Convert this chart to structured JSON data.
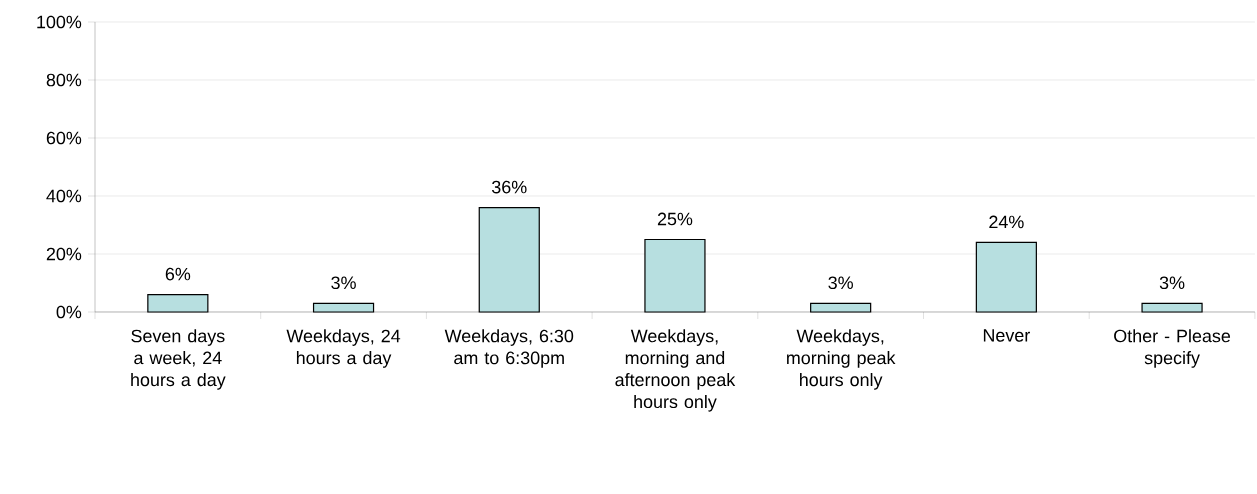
{
  "chart_data": {
    "type": "bar",
    "categories": [
      "Seven days a week, 24 hours a day",
      "Weekdays, 24 hours a day",
      "Weekdays, 6:30 am to 6:30pm",
      "Weekdays, morning and afternoon peak hours only",
      "Weekdays, morning peak hours only",
      "Never",
      "Other - Please specify"
    ],
    "values": [
      6,
      3,
      36,
      25,
      3,
      24,
      3
    ],
    "value_labels": [
      "6%",
      "3%",
      "36%",
      "25%",
      "3%",
      "24%",
      "3%"
    ],
    "color": "#b7dfe0",
    "ylim": [
      0,
      100
    ],
    "yticks": [
      {
        "value": 0,
        "label": "0%"
      },
      {
        "value": 20,
        "label": "20%"
      },
      {
        "value": 40,
        "label": "40%"
      },
      {
        "value": 60,
        "label": "60%"
      },
      {
        "value": 80,
        "label": "80%"
      },
      {
        "value": 100,
        "label": "100%"
      }
    ],
    "grid": "y"
  }
}
